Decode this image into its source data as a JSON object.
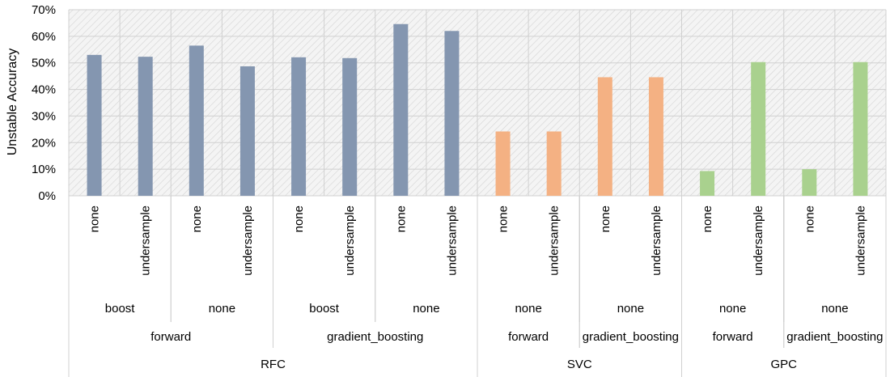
{
  "chart_data": {
    "type": "bar",
    "ylabel": "Unstable Accuracy",
    "ylim": [
      0,
      0.7
    ],
    "yticks": [
      0,
      0.1,
      0.2,
      0.3,
      0.4,
      0.5,
      0.6,
      0.7
    ],
    "ytick_labels": [
      "0%",
      "10%",
      "20%",
      "30%",
      "40%",
      "50%",
      "60%",
      "70%"
    ],
    "grid": true,
    "colors": {
      "RFC": "#8496b0",
      "SVC": "#f4b183",
      "GPC": "#a9d18e"
    },
    "bars": [
      {
        "model": "RFC",
        "feature_selection": "forward",
        "ensemble": "boost",
        "sampling": "none",
        "value": 0.53
      },
      {
        "model": "RFC",
        "feature_selection": "forward",
        "ensemble": "boost",
        "sampling": "undersample",
        "value": 0.523
      },
      {
        "model": "RFC",
        "feature_selection": "forward",
        "ensemble": "none",
        "sampling": "none",
        "value": 0.565
      },
      {
        "model": "RFC",
        "feature_selection": "forward",
        "ensemble": "none",
        "sampling": "undersample",
        "value": 0.487
      },
      {
        "model": "RFC",
        "feature_selection": "gradient_boosting",
        "ensemble": "boost",
        "sampling": "none",
        "value": 0.521
      },
      {
        "model": "RFC",
        "feature_selection": "gradient_boosting",
        "ensemble": "boost",
        "sampling": "undersample",
        "value": 0.518
      },
      {
        "model": "RFC",
        "feature_selection": "gradient_boosting",
        "ensemble": "none",
        "sampling": "none",
        "value": 0.646
      },
      {
        "model": "RFC",
        "feature_selection": "gradient_boosting",
        "ensemble": "none",
        "sampling": "undersample",
        "value": 0.62
      },
      {
        "model": "SVC",
        "feature_selection": "forward",
        "ensemble": "none",
        "sampling": "none",
        "value": 0.242
      },
      {
        "model": "SVC",
        "feature_selection": "forward",
        "ensemble": "none",
        "sampling": "undersample",
        "value": 0.242
      },
      {
        "model": "SVC",
        "feature_selection": "gradient_boosting",
        "ensemble": "none",
        "sampling": "none",
        "value": 0.446
      },
      {
        "model": "SVC",
        "feature_selection": "gradient_boosting",
        "ensemble": "none",
        "sampling": "undersample",
        "value": 0.446
      },
      {
        "model": "GPC",
        "feature_selection": "forward",
        "ensemble": "none",
        "sampling": "none",
        "value": 0.093
      },
      {
        "model": "GPC",
        "feature_selection": "forward",
        "ensemble": "none",
        "sampling": "undersample",
        "value": 0.503
      },
      {
        "model": "GPC",
        "feature_selection": "gradient_boosting",
        "ensemble": "none",
        "sampling": "none",
        "value": 0.1
      },
      {
        "model": "GPC",
        "feature_selection": "gradient_boosting",
        "ensemble": "none",
        "sampling": "undersample",
        "value": 0.503
      }
    ]
  }
}
